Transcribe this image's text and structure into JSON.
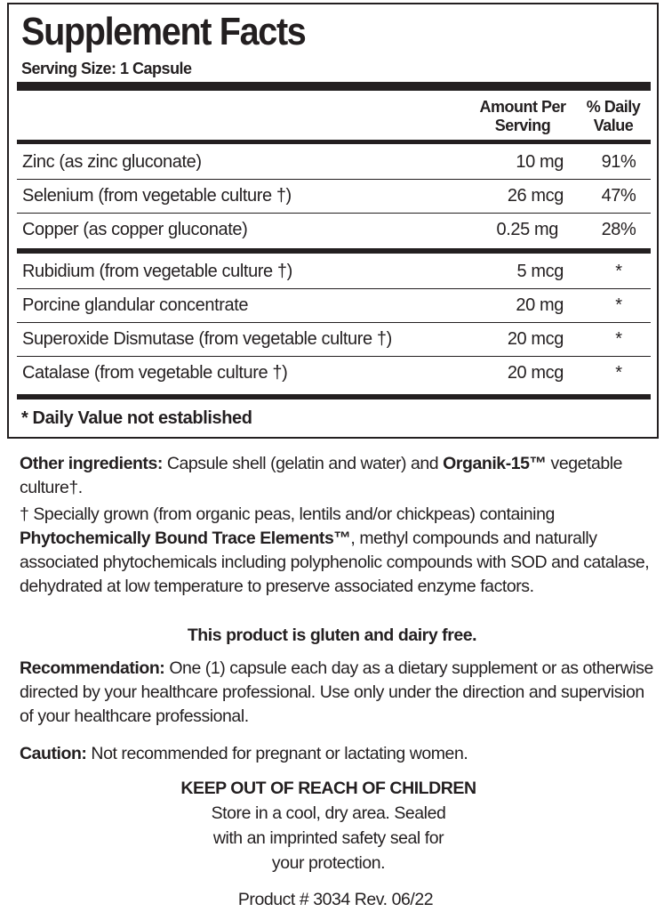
{
  "label": {
    "title": "Supplement Facts",
    "serving_size": "Serving Size: 1 Capsule",
    "columns": {
      "amount_line1": "Amount Per",
      "amount_line2": "Serving",
      "dv_line1": "% Daily",
      "dv_line2": "Value"
    },
    "rows": [
      {
        "name": "Zinc (as zinc gluconate)",
        "amount": "10 mg",
        "dv": "91%"
      },
      {
        "name": "Selenium (from vegetable culture †)",
        "amount": "26 mcg",
        "dv": "47%"
      },
      {
        "name": "Copper (as copper gluconate)",
        "amount": "0.25 mg",
        "dv": "28%"
      },
      {
        "name": "Rubidium (from vegetable culture †)",
        "amount": "5 mcg",
        "dv": "*"
      },
      {
        "name": "Porcine glandular concentrate",
        "amount": "20 mg",
        "dv": "*"
      },
      {
        "name": "Superoxide Dismutase (from vegetable culture †)",
        "amount": "20 mcg",
        "dv": "*"
      },
      {
        "name": "Catalase (from vegetable culture †)",
        "amount": "20 mcg",
        "dv": "*"
      }
    ],
    "footnote": "* Daily Value not established"
  },
  "text": {
    "other_label": "Other ingredients:",
    "other_text": " Capsule shell (gelatin and water) and ",
    "organik": "Organik-15™",
    "other_end": " vegetable culture†.",
    "dagger_text": "† Specially grown (from organic peas, lentils and/or chickpeas) containing ",
    "phyto": "Phytochemically Bound Trace Elements™",
    "dagger_end": ", methyl compounds and naturally associated phytochemicals including polyphenolic compounds with SOD and catalase, dehydrated at low temperature to preserve associated enzyme factors.",
    "gluten": "This product is gluten and dairy free.",
    "rec_label": "Recommendation:",
    "rec_text": " One (1) capsule each day as a dietary supplement or as otherwise directed by your healthcare professional. Use only under the direction and supervision of your healthcare professional.",
    "caution_label": "Caution:",
    "caution_text": " Not recommended for pregnant or lactating women.",
    "keep_out": "KEEP OUT OF REACH OF CHILDREN",
    "store1": "Store in a cool, dry area. Sealed",
    "store2": "with an imprinted safety seal for",
    "store3": "your protection.",
    "product": "Product # 3034 Rev. 06/22"
  }
}
